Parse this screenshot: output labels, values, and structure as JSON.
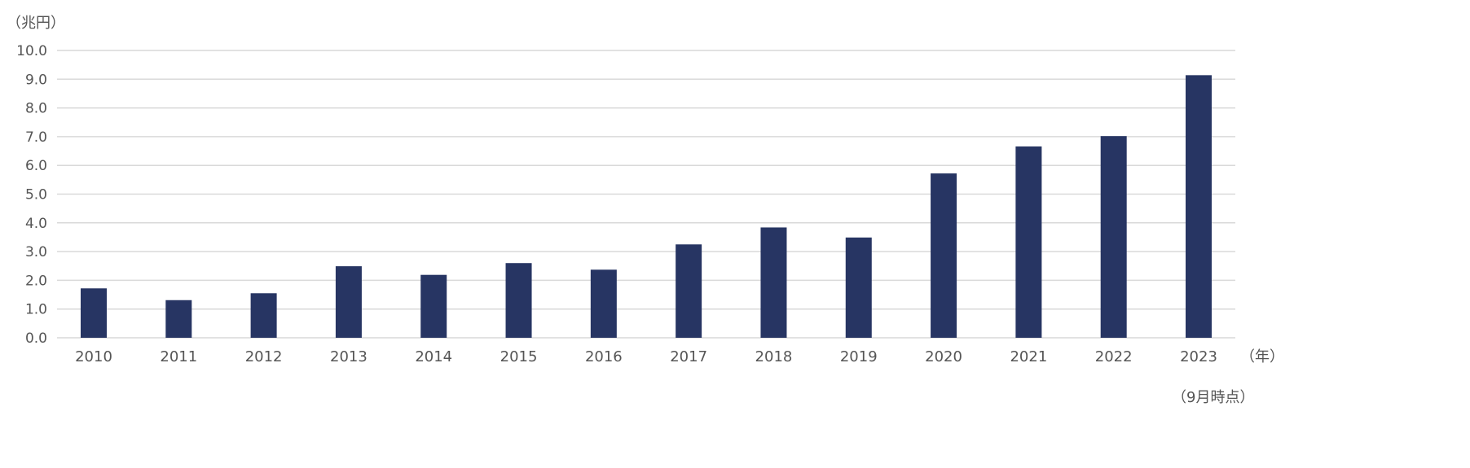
{
  "chart_data": {
    "type": "bar",
    "title": "",
    "ylabel": "（兆円）",
    "xlabel": "（年）",
    "note": "（9月時点）",
    "categories": [
      "2010",
      "2011",
      "2012",
      "2013",
      "2014",
      "2015",
      "2016",
      "2017",
      "2018",
      "2019",
      "2020",
      "2021",
      "2022",
      "2023"
    ],
    "values": [
      1.72,
      1.31,
      1.55,
      2.49,
      2.19,
      2.6,
      2.37,
      3.25,
      3.84,
      3.49,
      5.72,
      6.66,
      7.02,
      9.14
    ],
    "ylim": [
      0,
      10
    ],
    "yticks": [
      "0.0",
      "1.0",
      "2.0",
      "3.0",
      "4.0",
      "5.0",
      "6.0",
      "7.0",
      "8.0",
      "9.0",
      "10.0"
    ],
    "grid": true,
    "legend": "none",
    "bar_color": "#273563",
    "grid_color": "#d9d9d9"
  }
}
